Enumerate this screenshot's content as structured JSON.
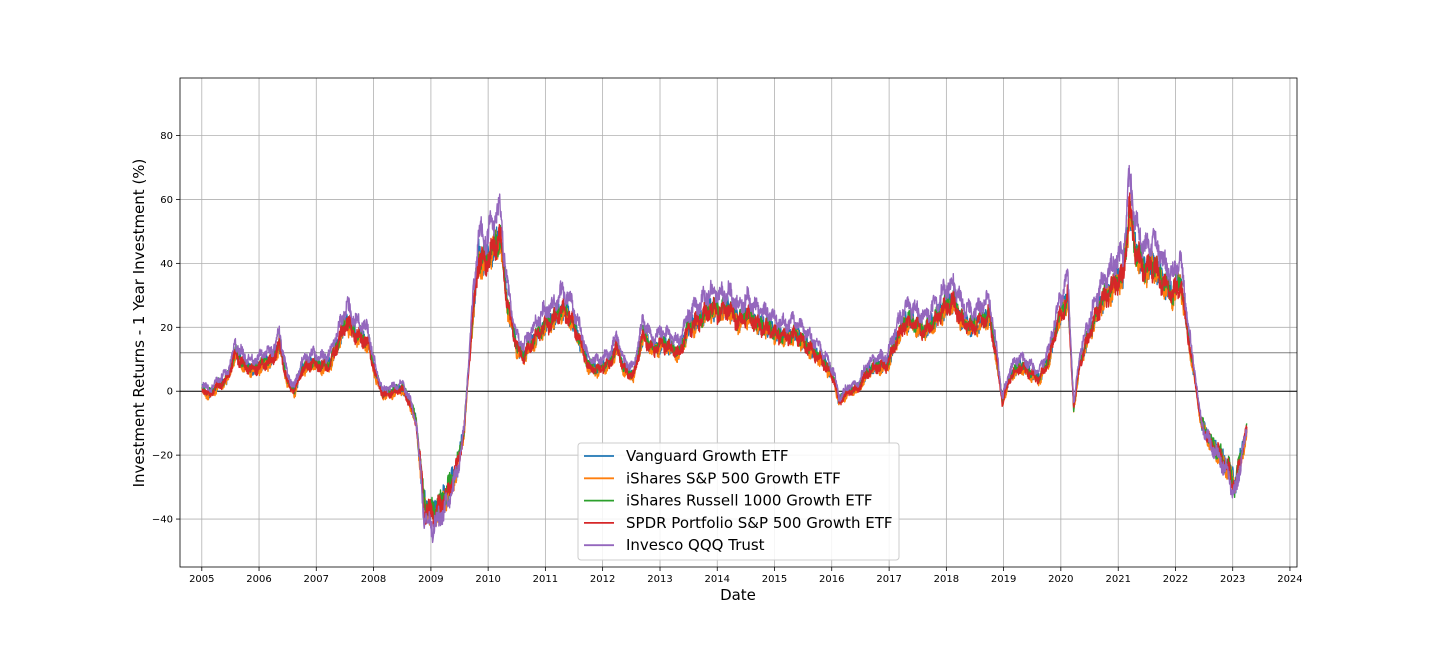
{
  "chart_data": {
    "type": "line",
    "xlabel": "Date",
    "ylabel": "Investment Returns - 1 Year Investment (%)",
    "xlim": [
      "2004-08-15",
      "2024-02-15"
    ],
    "ylim": [
      -55,
      98
    ],
    "x_ticks": [
      "2005",
      "2006",
      "2007",
      "2008",
      "2009",
      "2010",
      "2011",
      "2012",
      "2013",
      "2014",
      "2015",
      "2016",
      "2017",
      "2018",
      "2019",
      "2020",
      "2021",
      "2022",
      "2023",
      "2024"
    ],
    "y_ticks": [
      -40,
      -20,
      0,
      20,
      40,
      60,
      80
    ],
    "grid": true,
    "reference_lines": [
      0,
      12
    ],
    "legend_position": "bottom-center",
    "colors": [
      "#1f77b4",
      "#ff7f0e",
      "#2ca02c",
      "#d62728",
      "#9467bd"
    ],
    "base_series": {
      "x": [
        "2005-01-03",
        "2005-02-15",
        "2005-04-15",
        "2005-06-15",
        "2005-08-01",
        "2005-10-01",
        "2005-12-01",
        "2006-02-01",
        "2006-04-01",
        "2006-05-10",
        "2006-07-01",
        "2006-08-15",
        "2006-10-01",
        "2006-12-01",
        "2007-02-15",
        "2007-04-01",
        "2007-06-01",
        "2007-07-15",
        "2007-09-01",
        "2007-10-15",
        "2007-11-30",
        "2008-01-15",
        "2008-03-01",
        "2008-05-15",
        "2008-07-01",
        "2008-08-15",
        "2008-10-01",
        "2008-11-20",
        "2009-01-15",
        "2009-03-10",
        "2009-05-01",
        "2009-06-15",
        "2009-08-01",
        "2009-09-15",
        "2009-11-01",
        "2009-12-15",
        "2010-02-01",
        "2010-03-20",
        "2010-05-01",
        "2010-07-01",
        "2010-08-15",
        "2010-10-15",
        "2010-12-15",
        "2011-02-15",
        "2011-04-15",
        "2011-06-15",
        "2011-08-15",
        "2011-10-01",
        "2011-12-01",
        "2012-02-15",
        "2012-04-01",
        "2012-05-15",
        "2012-07-15",
        "2012-09-15",
        "2012-11-15",
        "2013-01-15",
        "2013-03-01",
        "2013-05-01",
        "2013-07-01",
        "2013-09-01",
        "2013-11-15",
        "2014-01-15",
        "2014-03-15",
        "2014-05-15",
        "2014-07-15",
        "2014-09-15",
        "2014-11-15",
        "2015-01-15",
        "2015-03-15",
        "2015-05-15",
        "2015-07-15",
        "2015-09-15",
        "2015-11-15",
        "2016-01-15",
        "2016-02-15",
        "2016-04-15",
        "2016-06-15",
        "2016-08-15",
        "2016-10-15",
        "2016-12-15",
        "2017-02-15",
        "2017-04-15",
        "2017-06-15",
        "2017-08-15",
        "2017-10-15",
        "2017-12-15",
        "2018-02-15",
        "2018-04-15",
        "2018-06-15",
        "2018-08-15",
        "2018-10-01",
        "2018-11-15",
        "2018-12-24",
        "2019-02-15",
        "2019-04-15",
        "2019-06-15",
        "2019-08-15",
        "2019-10-15",
        "2019-12-15",
        "2020-02-15",
        "2020-03-23",
        "2020-05-01",
        "2020-06-15",
        "2020-08-01",
        "2020-09-15",
        "2020-11-01",
        "2020-12-15",
        "2021-02-01",
        "2021-03-15",
        "2021-04-15",
        "2021-06-15",
        "2021-08-15",
        "2021-10-15",
        "2021-12-15",
        "2022-02-01",
        "2022-03-15",
        "2022-05-01",
        "2022-06-15",
        "2022-08-15",
        "2022-10-15",
        "2022-12-15",
        "2023-01-15",
        "2023-02-15",
        "2023-04-01"
      ],
      "y": [
        1,
        -1,
        2,
        4,
        12,
        8,
        7,
        9,
        10,
        15,
        3,
        0,
        7,
        9,
        8,
        9,
        17,
        22,
        18,
        17,
        15,
        5,
        -1,
        0,
        1,
        -3,
        -10,
        -36,
        -38,
        -35,
        -30,
        -24,
        -12,
        18,
        42,
        40,
        45,
        48,
        28,
        14,
        11,
        16,
        20,
        22,
        26,
        23,
        15,
        8,
        7,
        9,
        14,
        7,
        5,
        18,
        13,
        15,
        14,
        12,
        20,
        22,
        26,
        25,
        26,
        22,
        24,
        21,
        20,
        18,
        17,
        18,
        15,
        12,
        9,
        4,
        -3,
        0,
        1,
        6,
        8,
        8,
        16,
        22,
        21,
        19,
        22,
        26,
        28,
        22,
        20,
        22,
        24,
        11,
        -3,
        5,
        8,
        6,
        4,
        10,
        22,
        30,
        -5,
        9,
        16,
        22,
        28,
        31,
        34,
        36,
        58,
        45,
        38,
        40,
        34,
        30,
        35,
        20,
        5,
        -10,
        -16,
        -20,
        -25,
        -30,
        -22,
        -12
      ]
    },
    "series": [
      {
        "name": "Vanguard Growth ETF",
        "offset": 0
      },
      {
        "name": "iShares S&P 500 Growth ETF",
        "offset": -0.8
      },
      {
        "name": "iShares Russell 1000 Growth ETF",
        "offset": 0.4
      },
      {
        "name": "SPDR Portfolio S&P 500 Growth ETF",
        "offset": -0.3
      },
      {
        "name": "Invesco QQQ Trust",
        "offset": 0
      }
    ]
  }
}
